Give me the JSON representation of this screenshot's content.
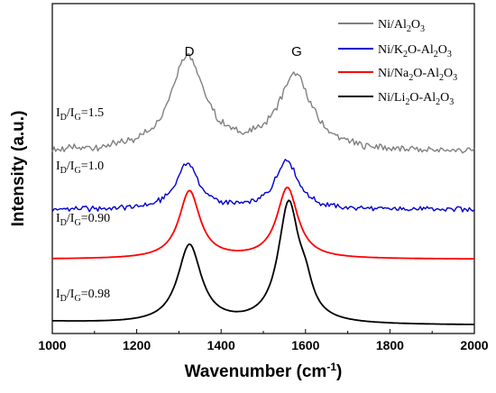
{
  "chart_data": {
    "type": "line",
    "xlabel": "Wavenumber (cm",
    "xlabel_sup": "-1",
    "xlabel_close": ")",
    "ylabel": "Intensity (a.u.)",
    "xlim": [
      1000,
      2000
    ],
    "xticks": [
      "1000",
      "1200",
      "1400",
      "1600",
      "1800",
      "2000"
    ],
    "xtick_values": [
      1000,
      1200,
      1400,
      1600,
      1800,
      2000
    ],
    "y_ticks_shown": false,
    "legend_position": "top-right",
    "peaks": [
      {
        "label": "D",
        "x": 1320
      },
      {
        "label": "G",
        "x": 1580
      }
    ],
    "series": [
      {
        "name": "Ni/Al2O3",
        "color": "#808080",
        "ratio_label": {
          "pre": "I",
          "sub1": "D",
          "mid": "/I",
          "sub2": "G",
          "post": "=1.5"
        },
        "baseline": 1.05,
        "noise": 0.035,
        "peaks": [
          {
            "center": 1320,
            "amp": 0.58,
            "width": 48
          },
          {
            "center": 1575,
            "amp": 0.45,
            "width": 48
          }
        ]
      },
      {
        "name": "Ni/K2O-Al2O3",
        "color": "#0000cc",
        "ratio_label": {
          "pre": "I",
          "sub1": "D",
          "mid": "/I",
          "sub2": "G",
          "post": "=1.0"
        },
        "baseline": 0.7,
        "noise": 0.025,
        "peaks": [
          {
            "center": 1320,
            "amp": 0.28,
            "width": 32
          },
          {
            "center": 1555,
            "amp": 0.3,
            "width": 32
          }
        ]
      },
      {
        "name": "Ni/Na2O-Al2O3",
        "color": "#ff0000",
        "ratio_label": {
          "pre": "I",
          "sub1": "D",
          "mid": "/I",
          "sub2": "G",
          "post": "=0.90"
        },
        "baseline": 0.4,
        "noise": 0,
        "peaks": [
          {
            "center": 1325,
            "amp": 0.41,
            "width": 30
          },
          {
            "center": 1557,
            "amp": 0.43,
            "width": 30
          }
        ]
      },
      {
        "name": "Ni/Li2O-Al2O3",
        "color": "#000000",
        "ratio_label": {
          "pre": "I",
          "sub1": "D",
          "mid": "/I",
          "sub2": "G",
          "post": "=0.98"
        },
        "baseline": 0.0,
        "noise": 0,
        "peaks": [
          {
            "center": 1325,
            "amp": 0.48,
            "width": 34
          },
          {
            "center": 1560,
            "amp": 0.72,
            "width": 30
          },
          {
            "center": 1600,
            "amp": 0.14,
            "width": 20
          }
        ]
      }
    ],
    "legend": [
      {
        "pre": "Ni/Al",
        "sub": "2",
        "mid": "O",
        "sub2": "3",
        "post": "",
        "color": "#808080"
      },
      {
        "pre": "Ni/K",
        "sub": "2",
        "mid": "O-Al",
        "sub2": "2",
        "post": "O",
        "sub3": "3",
        "color": "#0000cc"
      },
      {
        "pre": "Ni/Na",
        "sub": "2",
        "mid": "O-Al",
        "sub2": "2",
        "post": "O",
        "sub3": "3",
        "color": "#ff0000"
      },
      {
        "pre": "Ni/Li",
        "sub": "2",
        "mid": "O-Al",
        "sub2": "2",
        "post": "O",
        "sub3": "3",
        "color": "#000000"
      }
    ]
  }
}
